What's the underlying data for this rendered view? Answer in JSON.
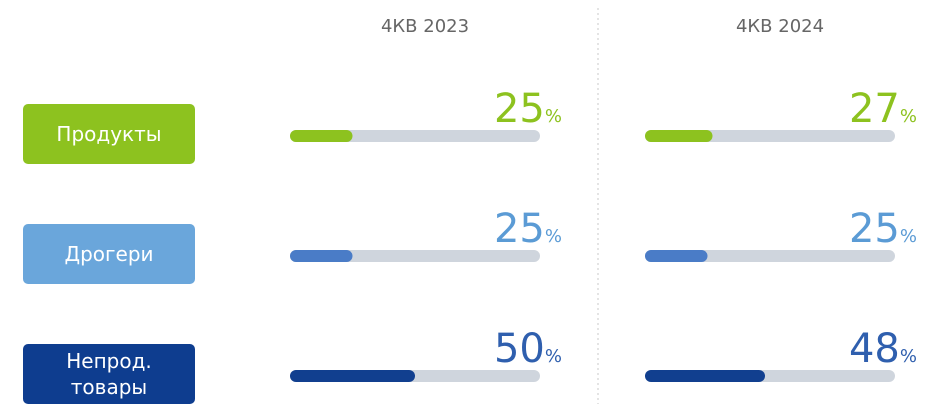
{
  "chart_data": {
    "type": "progress",
    "categories": [
      "Продукты",
      "Дрогери",
      "Непрод. товары"
    ],
    "colors": [
      "#8dc21f",
      "#6aa6db",
      "#0e3d8f"
    ],
    "bar_colors": [
      "#8dc21f",
      "#4a7cc7",
      "#113f8f"
    ],
    "label_colors": [
      "#8dc21f",
      "#5b9bd5",
      "#2f5fae"
    ],
    "track_color": "#cfd5dd",
    "xlim": [
      0,
      100
    ],
    "series": [
      {
        "name": "4КВ 2023",
        "values": [
          25,
          25,
          50
        ],
        "value_labels": [
          "25%",
          "25%",
          "50%"
        ]
      },
      {
        "name": "4КВ 2024",
        "values": [
          27,
          25,
          48
        ],
        "value_labels": [
          "27%",
          "25%",
          "48%"
        ]
      }
    ]
  }
}
